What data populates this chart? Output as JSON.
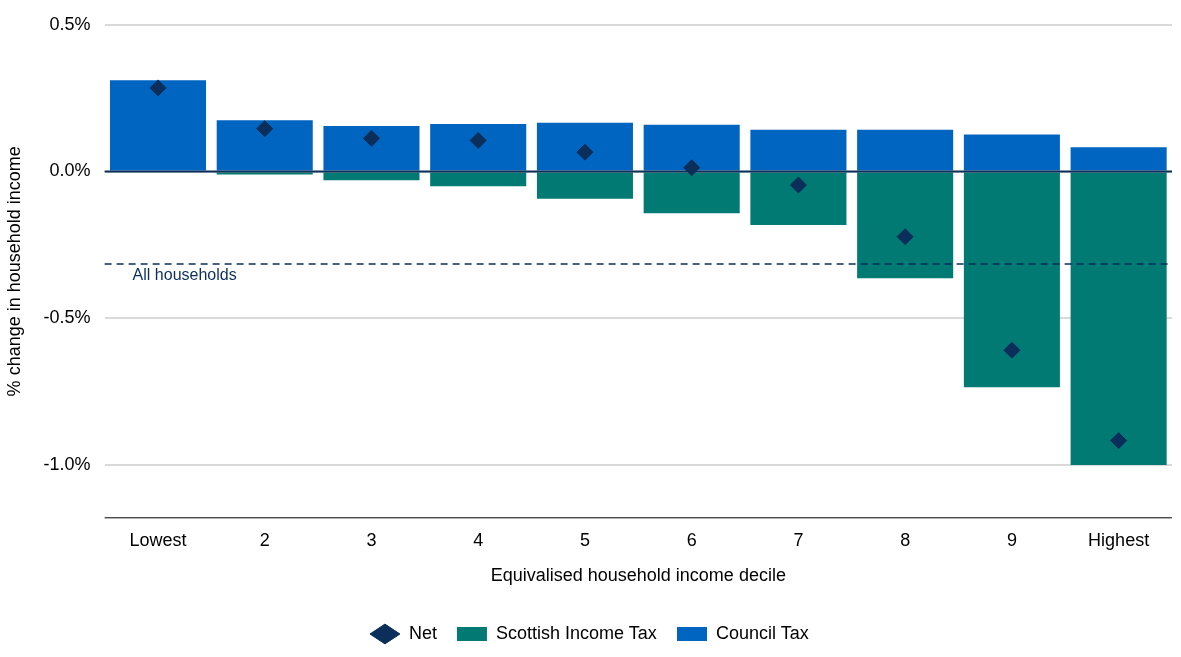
{
  "chart_data": {
    "type": "bar",
    "stacked": true,
    "xlabel": "Equivalised household income decile",
    "ylabel": "% change in household income",
    "categories": [
      "Lowest",
      "2",
      "3",
      "4",
      "5",
      "6",
      "7",
      "8",
      "9",
      "Highest"
    ],
    "series": [
      {
        "name": "Scottish Income Tax",
        "color": "#007a73",
        "values": [
          0,
          -0.01,
          -0.03,
          -0.05,
          -0.093,
          -0.142,
          -0.182,
          -0.364,
          -0.735,
          -1.0
        ]
      },
      {
        "name": "Council Tax",
        "color": "#0065c1",
        "values": [
          0.311,
          0.175,
          0.155,
          0.162,
          0.166,
          0.159,
          0.142,
          0.142,
          0.126,
          0.083
        ]
      },
      {
        "name": "Net",
        "type": "scatter",
        "color": "#0b2f5a",
        "marker": "diamond",
        "x": [
          "Lowest",
          "2",
          "3",
          "4",
          "5",
          "6",
          "7",
          "8",
          "9",
          "Highest"
        ],
        "values": [
          0.285,
          0.146,
          0.113,
          0.106,
          0.066,
          0.013,
          -0.046,
          -0.222,
          -0.609,
          -0.917
        ]
      }
    ],
    "ylim": [
      -1.18,
      0.5
    ],
    "yticks": [
      {
        "value": -1.0,
        "label": "-1.0%"
      },
      {
        "value": -0.5,
        "label": "-0.5%"
      },
      {
        "value": 0,
        "label": "0.0%"
      },
      {
        "value": 0.5,
        "label": "0.5%"
      }
    ],
    "grid": "y",
    "legend": "bottom",
    "ref_lines": [
      {
        "axis": "y",
        "value": -0.315,
        "label": "All households",
        "color": "#0b2f5a",
        "line_style": "dashed"
      }
    ]
  }
}
